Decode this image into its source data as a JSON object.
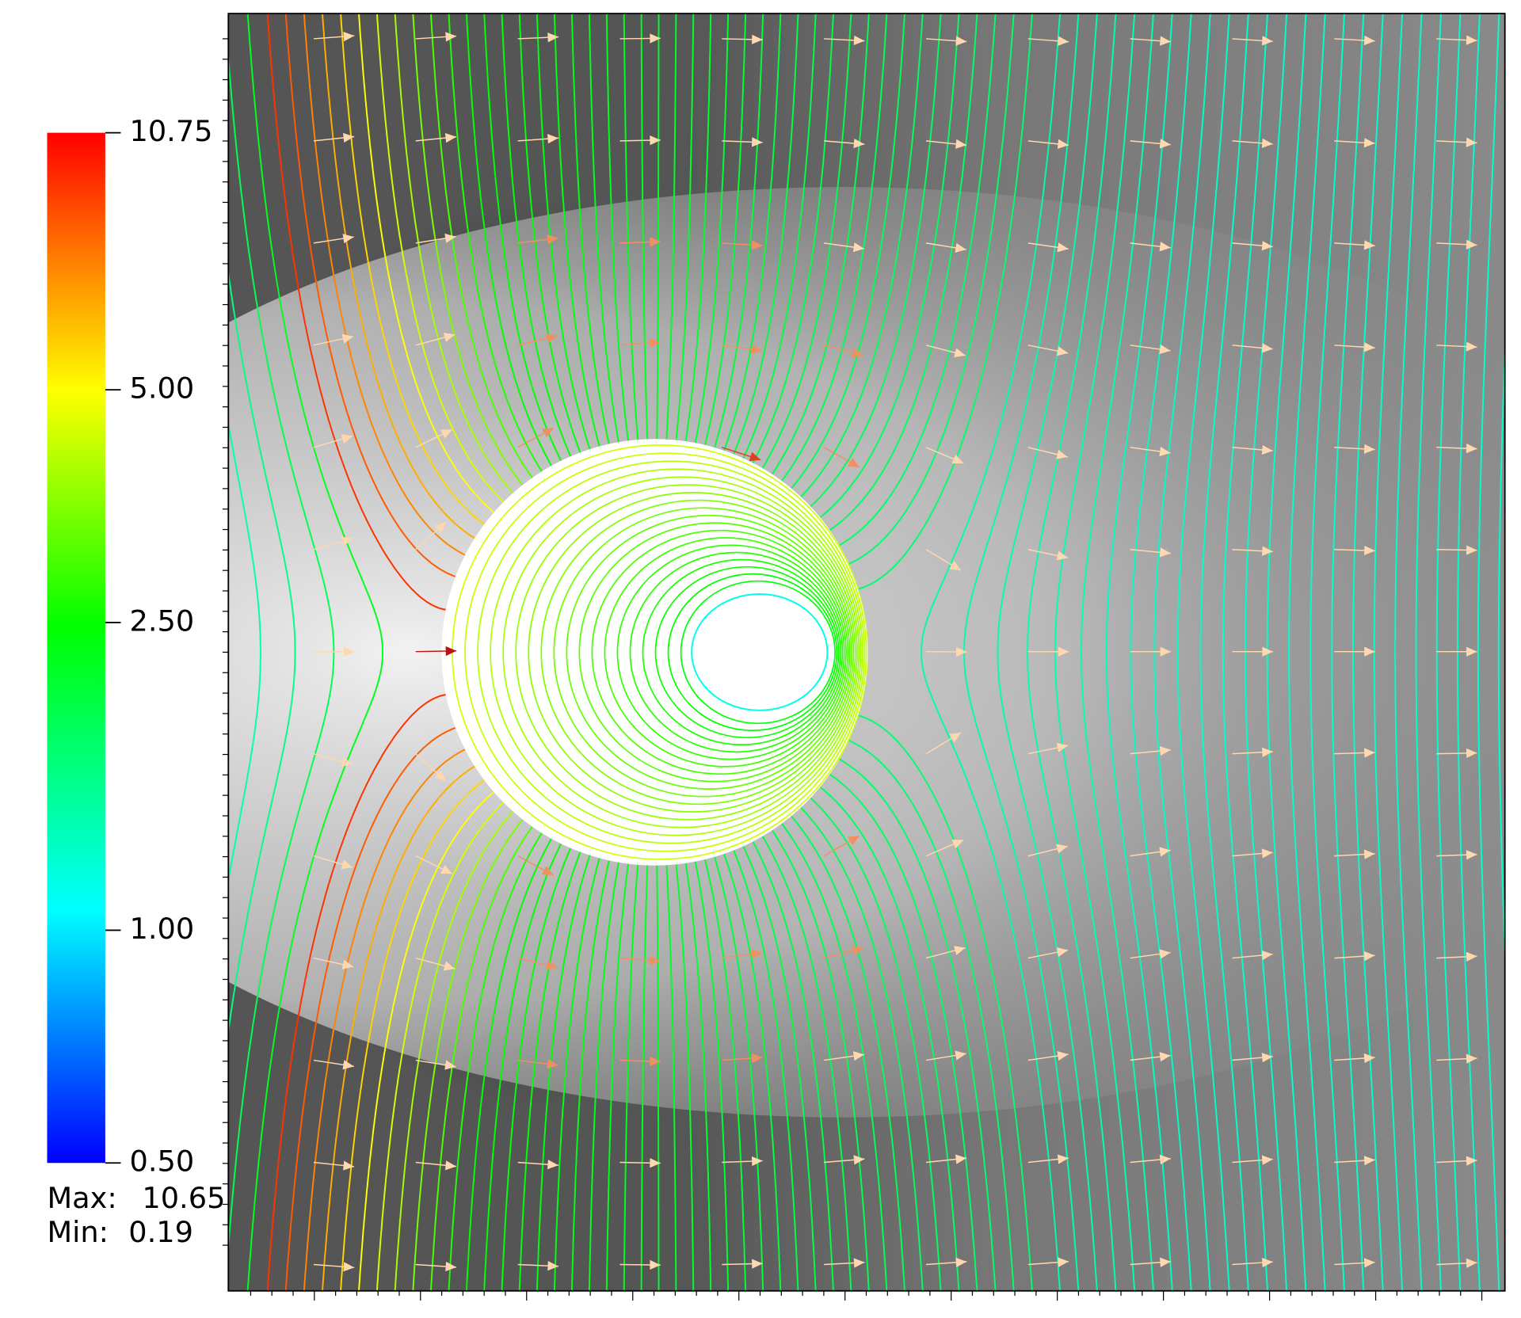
{
  "colorbar": {
    "scale": "log",
    "lim": [
      0.5,
      10.75
    ],
    "ticks": [
      10.75,
      {
        "value": 5,
        "label": "5.00"
      },
      {
        "value": 2.5,
        "label": "2.50"
      },
      {
        "value": 1,
        "label": "1.00"
      },
      {
        "value": 0.5,
        "label": "0.50"
      }
    ]
  },
  "max": {
    "label": "Max:",
    "value": 10.65
  },
  "min": {
    "label": "Min:",
    "value": 0.19
  }
}
